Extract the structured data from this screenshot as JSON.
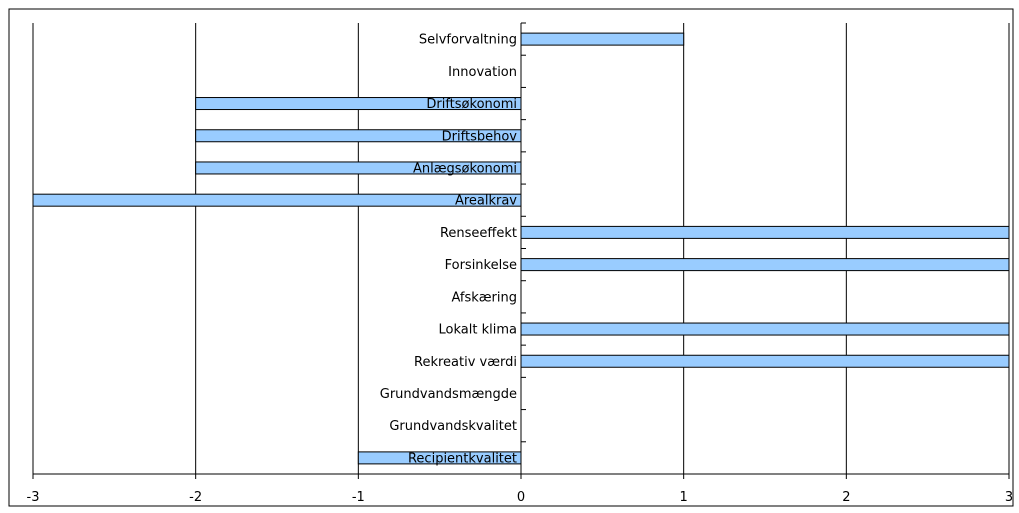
{
  "chart_data": {
    "type": "bar",
    "orientation": "horizontal",
    "title": "",
    "xlabel": "",
    "ylabel": "",
    "xlim": [
      -3,
      3
    ],
    "x_ticks": [
      "-3",
      "-2",
      "-1",
      "0",
      "1",
      "2",
      "3"
    ],
    "grid": "vertical major gridlines",
    "legend": "none",
    "categories": [
      "Selvforvaltning",
      "Innovation",
      "Driftsøkonomi",
      "Driftsbehov",
      "Anlægsøkonomi",
      "Arealkrav",
      "Renseeffekt",
      "Forsinkelse",
      "Afskæring",
      "Lokalt klima",
      "Rekreativ værdi",
      "Grundvandsmængde",
      "Grundvandskvalitet",
      "Recipientkvalitet"
    ],
    "values": [
      1,
      0,
      -2,
      -2,
      -2,
      -3,
      3,
      3,
      0,
      3,
      3,
      0,
      0,
      -1
    ],
    "colors": {
      "bar_fill": "#99CCFF",
      "bar_stroke": "#000000",
      "gridline": "#000000",
      "frame": "#000000",
      "background": "#FFFFFF"
    }
  }
}
